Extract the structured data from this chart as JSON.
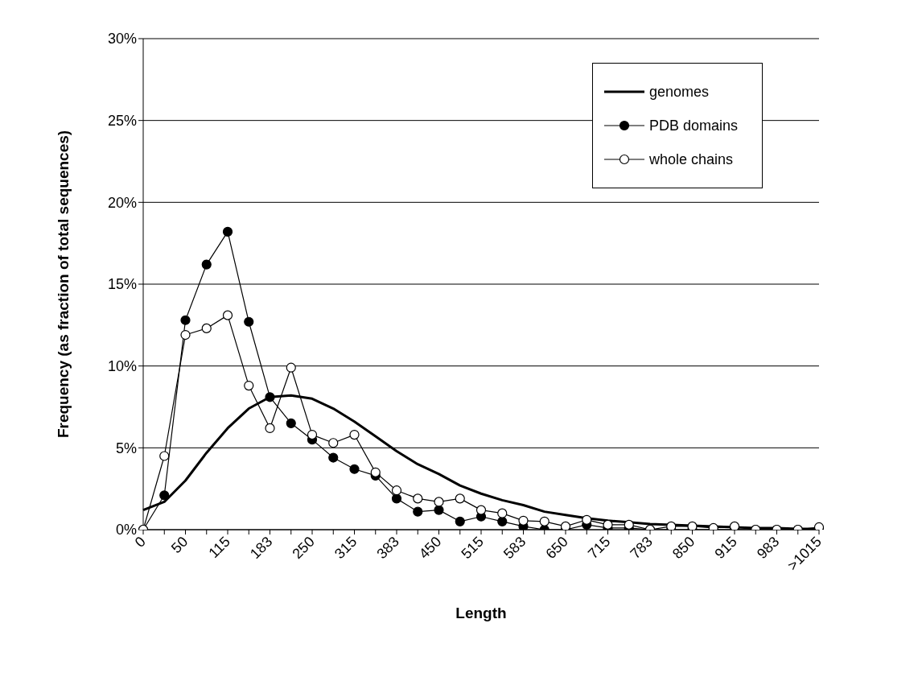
{
  "chart_data": {
    "type": "line",
    "xlabel": "Length",
    "ylabel": "Frequency (as fraction of total sequences)",
    "categories": [
      "0",
      null,
      "50",
      null,
      "115",
      null,
      "183",
      null,
      "250",
      null,
      "315",
      null,
      "383",
      null,
      "450",
      null,
      "515",
      null,
      "583",
      null,
      "650",
      null,
      "715",
      null,
      "783",
      null,
      "850",
      null,
      "915",
      null,
      "983",
      null,
      ">1015"
    ],
    "series": [
      {
        "name": "genomes",
        "color": "#000000",
        "marker": "none",
        "values": [
          1.2,
          1.7,
          3.0,
          4.7,
          6.2,
          7.4,
          8.1,
          8.2,
          8.0,
          7.4,
          6.6,
          5.7,
          4.8,
          4.0,
          3.4,
          2.7,
          2.2,
          1.8,
          1.5,
          1.1,
          0.9,
          0.7,
          0.55,
          0.45,
          0.35,
          0.3,
          0.25,
          0.2,
          0.15,
          0.1,
          0.1,
          0.05,
          0.05
        ]
      },
      {
        "name": "PDB domains",
        "color": "#000000",
        "marker": "circle",
        "values": [
          0,
          2.1,
          12.8,
          16.2,
          18.2,
          12.7,
          8.1,
          6.5,
          5.5,
          4.4,
          3.7,
          3.3,
          1.9,
          1.1,
          1.2,
          0.5,
          0.8,
          0.5,
          0.2,
          0,
          0,
          0.3,
          0.1,
          0.1,
          0,
          0,
          0,
          0,
          0,
          0,
          0,
          0,
          0
        ]
      },
      {
        "name": "whole chains",
        "color": "#000000",
        "marker": "circle",
        "values": [
          0,
          4.5,
          11.9,
          12.3,
          13.1,
          8.8,
          6.2,
          9.9,
          5.8,
          5.3,
          5.8,
          3.5,
          2.4,
          1.9,
          1.7,
          1.9,
          1.2,
          1.0,
          0.55,
          0.5,
          0.2,
          0.6,
          0.3,
          0.3,
          0,
          0.2,
          0.2,
          0.1,
          0.2,
          0,
          0,
          0,
          0.15
        ]
      }
    ],
    "ylim": [
      0,
      30
    ],
    "yticks": [
      {
        "value": 0,
        "label": "0%"
      },
      {
        "value": 5,
        "label": "5%"
      },
      {
        "value": 10,
        "label": "10%"
      },
      {
        "value": 15,
        "label": "15%"
      },
      {
        "value": 20,
        "label": "20%"
      },
      {
        "value": 25,
        "label": "25%"
      },
      {
        "value": 30,
        "label": "30%"
      }
    ],
    "grid": "y",
    "legend": "top right"
  }
}
